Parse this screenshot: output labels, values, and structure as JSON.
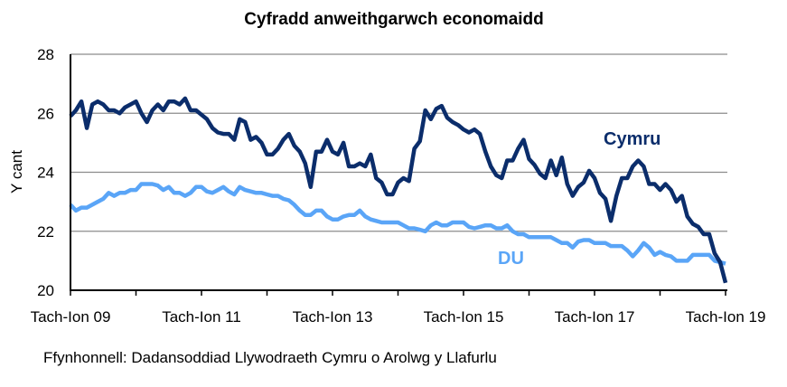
{
  "chart_data": {
    "type": "line",
    "title": "Cyfradd anweithgarwch economaidd",
    "ylabel": "Y cant",
    "xlabel": "",
    "ylim": [
      20,
      28
    ],
    "yticks": [
      20,
      22,
      24,
      26,
      28
    ],
    "xtick_labels": [
      "Tach-Ion 09",
      "Tach-Ion 11",
      "Tach-Ion 13",
      "Tach-Ion 15",
      "Tach-Ion 17",
      "Tach-Ion 19"
    ],
    "xtick_dates": [
      "2009-10",
      "2011-10",
      "2013-10",
      "2015-10",
      "2017-10",
      "2019-10"
    ],
    "grid": "horizontal",
    "x": [
      "2009-10",
      "2009-11",
      "2009-12",
      "2010-01",
      "2010-02",
      "2010-03",
      "2010-04",
      "2010-05",
      "2010-06",
      "2010-07",
      "2010-08",
      "2010-09",
      "2010-10",
      "2010-11",
      "2010-12",
      "2011-01",
      "2011-02",
      "2011-03",
      "2011-04",
      "2011-05",
      "2011-06",
      "2011-07",
      "2011-08",
      "2011-09",
      "2011-10",
      "2011-11",
      "2011-12",
      "2012-01",
      "2012-02",
      "2012-03",
      "2012-04",
      "2012-05",
      "2012-06",
      "2012-07",
      "2012-08",
      "2012-09",
      "2012-10",
      "2012-11",
      "2012-12",
      "2013-01",
      "2013-02",
      "2013-03",
      "2013-04",
      "2013-05",
      "2013-06",
      "2013-07",
      "2013-08",
      "2013-09",
      "2013-10",
      "2013-11",
      "2013-12",
      "2014-01",
      "2014-02",
      "2014-03",
      "2014-04",
      "2014-05",
      "2014-06",
      "2014-07",
      "2014-08",
      "2014-09",
      "2014-10",
      "2014-11",
      "2014-12",
      "2015-01",
      "2015-02",
      "2015-03",
      "2015-04",
      "2015-05",
      "2015-06",
      "2015-07",
      "2015-08",
      "2015-09",
      "2015-10",
      "2015-11",
      "2015-12",
      "2016-01",
      "2016-02",
      "2016-03",
      "2016-04",
      "2016-05",
      "2016-06",
      "2016-07",
      "2016-08",
      "2016-09",
      "2016-10",
      "2016-11",
      "2016-12",
      "2017-01",
      "2017-02",
      "2017-03",
      "2017-04",
      "2017-05",
      "2017-06",
      "2017-07",
      "2017-08",
      "2017-09",
      "2017-10",
      "2017-11",
      "2017-12",
      "2018-01",
      "2018-02",
      "2018-03",
      "2018-04",
      "2018-05",
      "2018-06",
      "2018-07",
      "2018-08",
      "2018-09",
      "2018-10",
      "2018-11",
      "2018-12",
      "2019-01",
      "2019-02",
      "2019-03",
      "2019-04",
      "2019-05",
      "2019-06",
      "2019-07",
      "2019-08",
      "2019-09",
      "2019-10"
    ],
    "series": [
      {
        "name": "Cymru",
        "color": "#0b2d6b",
        "values": [
          25.9,
          26.1,
          26.4,
          25.5,
          26.3,
          26.4,
          26.3,
          26.1,
          26.1,
          26.0,
          26.2,
          26.3,
          26.4,
          26.0,
          25.7,
          26.1,
          26.3,
          26.1,
          26.4,
          26.4,
          26.3,
          26.5,
          26.1,
          26.1,
          25.95,
          25.8,
          25.5,
          25.35,
          25.3,
          25.3,
          25.1,
          25.8,
          25.7,
          25.1,
          25.2,
          25.0,
          24.6,
          24.6,
          24.8,
          25.1,
          25.3,
          24.9,
          24.7,
          24.3,
          23.5,
          24.7,
          24.7,
          25.1,
          24.7,
          24.6,
          25.0,
          24.2,
          24.2,
          24.3,
          24.2,
          24.6,
          23.8,
          23.65,
          23.25,
          23.25,
          23.65,
          23.8,
          23.7,
          24.8,
          25.05,
          26.1,
          25.8,
          26.15,
          26.25,
          25.85,
          25.7,
          25.6,
          25.45,
          25.35,
          25.45,
          25.3,
          24.7,
          24.2,
          23.9,
          23.8,
          24.4,
          24.4,
          24.8,
          25.1,
          24.45,
          24.25,
          23.95,
          23.8,
          24.4,
          23.9,
          24.5,
          23.6,
          23.2,
          23.5,
          23.65,
          24.05,
          23.8,
          23.3,
          23.1,
          22.35,
          23.2,
          23.8,
          23.8,
          24.2,
          24.4,
          24.2,
          23.6,
          23.6,
          23.4,
          23.6,
          23.4,
          23.0,
          23.2,
          22.5,
          22.25,
          22.15,
          21.9,
          21.9,
          21.25,
          20.95,
          20.25
        ]
      },
      {
        "name": "DU",
        "color": "#5aa5f7",
        "values": [
          22.9,
          22.7,
          22.8,
          22.8,
          22.9,
          23.0,
          23.1,
          23.3,
          23.2,
          23.3,
          23.3,
          23.4,
          23.4,
          23.6,
          23.6,
          23.6,
          23.55,
          23.4,
          23.5,
          23.3,
          23.3,
          23.2,
          23.3,
          23.5,
          23.5,
          23.35,
          23.3,
          23.4,
          23.5,
          23.35,
          23.25,
          23.5,
          23.4,
          23.35,
          23.3,
          23.3,
          23.25,
          23.2,
          23.2,
          23.1,
          23.05,
          22.9,
          22.7,
          22.55,
          22.55,
          22.7,
          22.7,
          22.5,
          22.4,
          22.4,
          22.5,
          22.55,
          22.55,
          22.7,
          22.5,
          22.4,
          22.35,
          22.3,
          22.3,
          22.3,
          22.3,
          22.2,
          22.1,
          22.1,
          22.05,
          22.0,
          22.2,
          22.3,
          22.2,
          22.2,
          22.3,
          22.3,
          22.3,
          22.15,
          22.1,
          22.15,
          22.2,
          22.2,
          22.1,
          22.1,
          22.2,
          22.0,
          21.9,
          21.9,
          21.8,
          21.8,
          21.8,
          21.8,
          21.8,
          21.7,
          21.6,
          21.6,
          21.45,
          21.65,
          21.7,
          21.7,
          21.6,
          21.6,
          21.6,
          21.5,
          21.5,
          21.5,
          21.35,
          21.15,
          21.35,
          21.6,
          21.45,
          21.2,
          21.3,
          21.2,
          21.15,
          21.0,
          21.0,
          21.0,
          21.2,
          21.2,
          21.2,
          21.2,
          21.0,
          20.95,
          20.9
        ]
      }
    ]
  },
  "source": "Ffynhonnell: Dadansoddiad Llywodraeth Cymru o Arolwg y Llafurlu"
}
